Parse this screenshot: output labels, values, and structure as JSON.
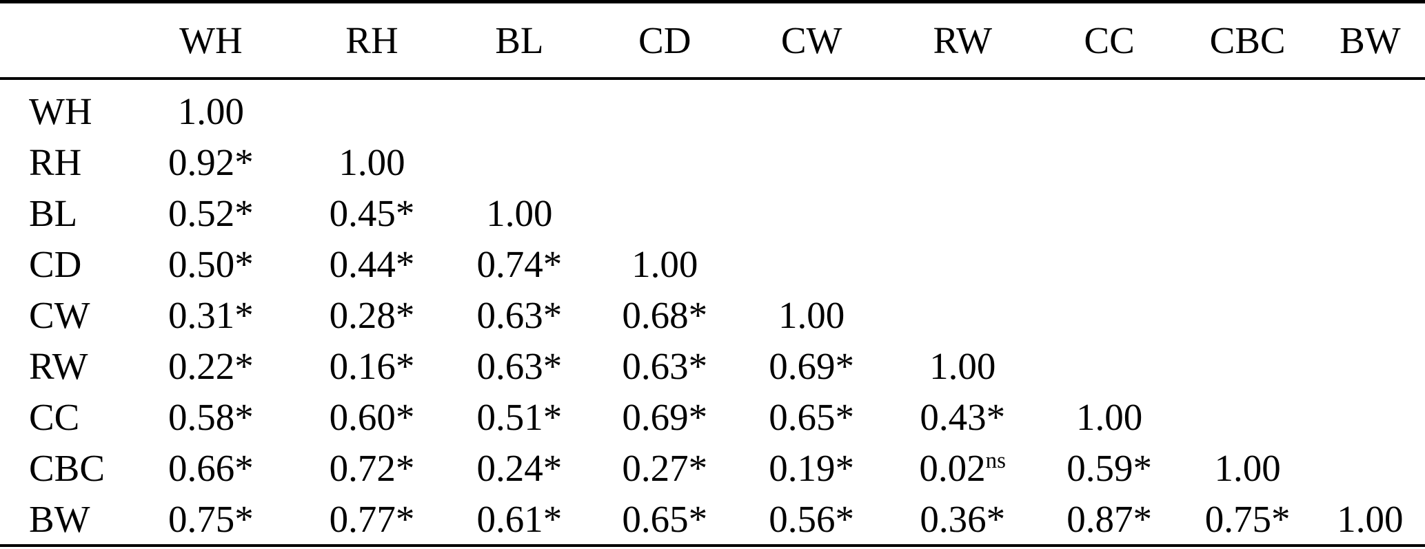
{
  "table": {
    "columns": [
      "",
      "WH",
      "RH",
      "BL",
      "CD",
      "CW",
      "RW",
      "CC",
      "CBC",
      "BW"
    ],
    "rows": [
      {
        "label": "WH",
        "cells": [
          "1.00",
          "",
          "",
          "",
          "",
          "",
          "",
          "",
          ""
        ]
      },
      {
        "label": "RH",
        "cells": [
          "0.92*",
          "1.00",
          "",
          "",
          "",
          "",
          "",
          "",
          ""
        ]
      },
      {
        "label": "BL",
        "cells": [
          "0.52*",
          "0.45*",
          "1.00",
          "",
          "",
          "",
          "",
          "",
          ""
        ]
      },
      {
        "label": "CD",
        "cells": [
          "0.50*",
          "0.44*",
          "0.74*",
          "1.00",
          "",
          "",
          "",
          "",
          ""
        ]
      },
      {
        "label": "CW",
        "cells": [
          "0.31*",
          "0.28*",
          "0.63*",
          "0.68*",
          "1.00",
          "",
          "",
          "",
          ""
        ]
      },
      {
        "label": "RW",
        "cells": [
          "0.22*",
          "0.16*",
          "0.63*",
          "0.63*",
          "0.69*",
          "1.00",
          "",
          "",
          ""
        ]
      },
      {
        "label": "CC",
        "cells": [
          "0.58*",
          "0.60*",
          "0.51*",
          "0.69*",
          "0.65*",
          "0.43*",
          "1.00",
          "",
          ""
        ]
      },
      {
        "label": "CBC",
        "cells": [
          "0.66*",
          "0.72*",
          "0.24*",
          "0.27*",
          "0.19*",
          "0.02^ns",
          "0.59*",
          "1.00",
          ""
        ]
      },
      {
        "label": "BW",
        "cells": [
          "0.75*",
          "0.77*",
          "0.61*",
          "0.65*",
          "0.56*",
          "0.36*",
          "0.87*",
          "0.75*",
          "1.00"
        ]
      }
    ],
    "text_color": "#000000",
    "rule_color": "#000000",
    "background_color": "#ffffff"
  }
}
